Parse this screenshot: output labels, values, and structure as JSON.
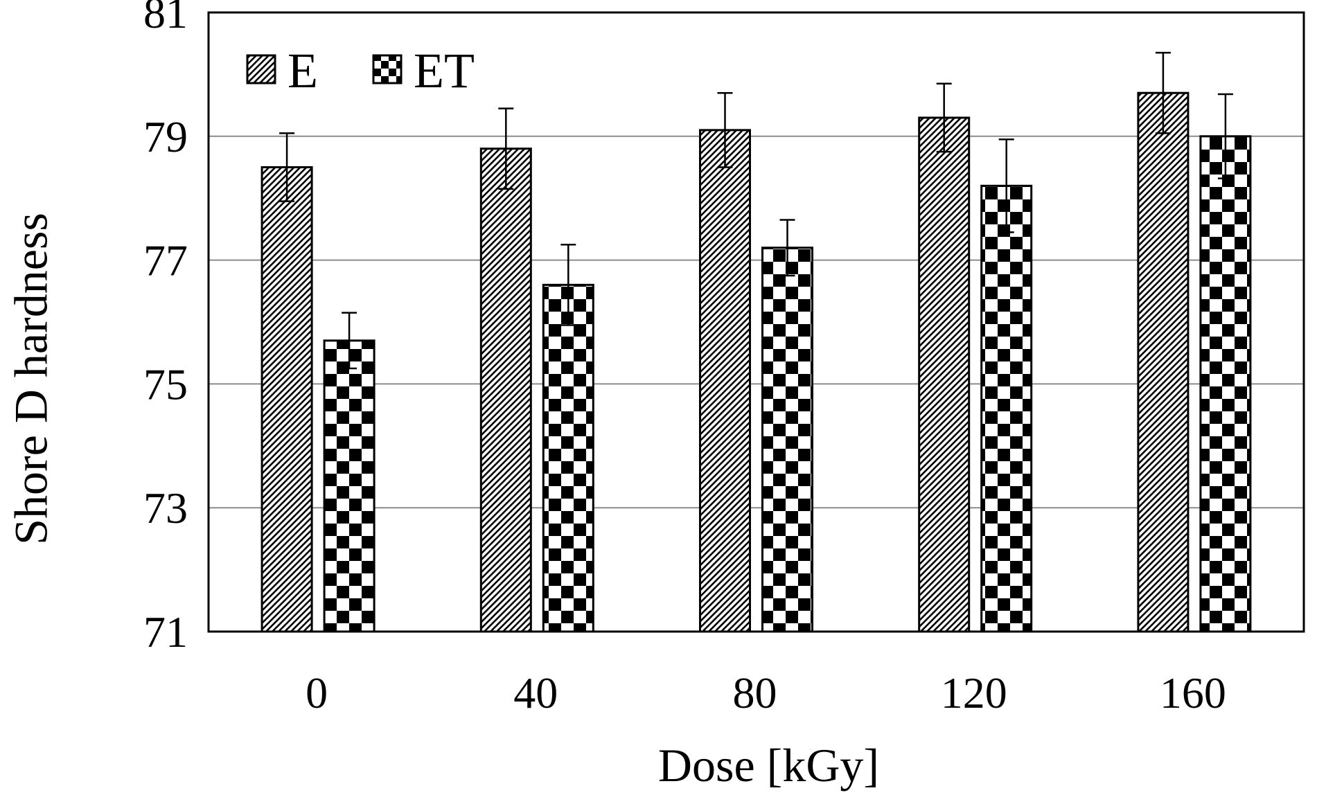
{
  "chart_data": {
    "type": "bar",
    "title": "",
    "xlabel": "Dose [kGy]",
    "ylabel": "Shore D hardness",
    "categories": [
      "0",
      "40",
      "80",
      "120",
      "160"
    ],
    "ylim": [
      71,
      81
    ],
    "yticks": [
      "71",
      "73",
      "75",
      "77",
      "79",
      "81"
    ],
    "grid": true,
    "legend_position": "top-left",
    "series": [
      {
        "name": "E",
        "pattern": "diagonal-hatch",
        "values": [
          78.5,
          78.8,
          79.1,
          79.3,
          79.7
        ],
        "errors": [
          0.55,
          0.65,
          0.6,
          0.55,
          0.65
        ]
      },
      {
        "name": "ET",
        "pattern": "checkerboard",
        "values": [
          75.7,
          76.6,
          77.2,
          78.2,
          79.0
        ],
        "errors": [
          0.45,
          0.65,
          0.45,
          0.75,
          0.68
        ]
      }
    ],
    "colors": {
      "ink": "#000000",
      "grid": "#8c8c8c",
      "background": "#ffffff"
    }
  }
}
